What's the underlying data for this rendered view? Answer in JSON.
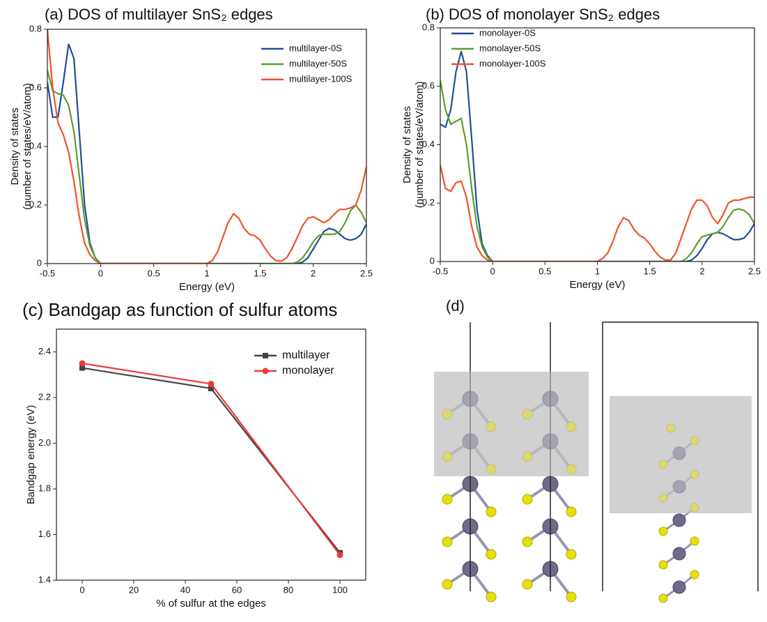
{
  "chart_data": [
    {
      "type": "line",
      "title": "(a) DOS of multilayer SnS₂ edges",
      "xlabel": "Energy (eV)",
      "ylabel": [
        "Density of states",
        "(number of states/eV/atom)"
      ],
      "xlim": [
        -0.5,
        2.5
      ],
      "xticks": [
        -0.5,
        0,
        0.5,
        1,
        1.5,
        2,
        2.5
      ],
      "ylim": [
        0,
        0.8
      ],
      "yticks": [
        0,
        0.2,
        0.4,
        0.6,
        0.8
      ],
      "grid": false,
      "legend": "upper right",
      "x": [
        -0.5,
        -0.45,
        -0.4,
        -0.35,
        -0.3,
        -0.25,
        -0.2,
        -0.15,
        -0.1,
        -0.05,
        0,
        0.1,
        0.5,
        1.0,
        1.05,
        1.1,
        1.15,
        1.2,
        1.25,
        1.3,
        1.35,
        1.4,
        1.45,
        1.5,
        1.55,
        1.6,
        1.65,
        1.7,
        1.75,
        1.8,
        1.85,
        1.9,
        1.95,
        2.0,
        2.05,
        2.1,
        2.15,
        2.2,
        2.25,
        2.3,
        2.35,
        2.4,
        2.45,
        2.5
      ],
      "series": [
        {
          "name": "multilayer-0S",
          "color": "#1f4e96",
          "values": [
            0.62,
            0.5,
            0.5,
            0.62,
            0.75,
            0.7,
            0.45,
            0.2,
            0.07,
            0.02,
            0,
            0,
            0,
            0,
            0,
            0,
            0,
            0,
            0,
            0,
            0,
            0,
            0,
            0,
            0,
            0,
            0,
            0,
            0,
            0,
            0,
            0.005,
            0.02,
            0.05,
            0.08,
            0.11,
            0.12,
            0.115,
            0.1,
            0.085,
            0.08,
            0.085,
            0.1,
            0.135
          ]
        },
        {
          "name": "multilayer-50S",
          "color": "#5a9e2f",
          "values": [
            0.66,
            0.59,
            0.58,
            0.575,
            0.54,
            0.45,
            0.3,
            0.15,
            0.06,
            0.02,
            0,
            0,
            0,
            0,
            0,
            0,
            0,
            0,
            0,
            0,
            0,
            0,
            0,
            0,
            0,
            0,
            0,
            0,
            0,
            0,
            0.005,
            0.02,
            0.045,
            0.075,
            0.095,
            0.1,
            0.1,
            0.1,
            0.11,
            0.14,
            0.18,
            0.2,
            0.175,
            0.14
          ]
        },
        {
          "name": "multilayer-100S",
          "color": "#f0522a",
          "values": [
            0.8,
            0.6,
            0.48,
            0.44,
            0.38,
            0.28,
            0.16,
            0.07,
            0.03,
            0.01,
            0,
            0,
            0,
            0,
            0.01,
            0.04,
            0.09,
            0.14,
            0.17,
            0.155,
            0.12,
            0.1,
            0.095,
            0.08,
            0.05,
            0.025,
            0.01,
            0.008,
            0.02,
            0.05,
            0.09,
            0.13,
            0.155,
            0.16,
            0.15,
            0.14,
            0.15,
            0.17,
            0.185,
            0.185,
            0.19,
            0.2,
            0.25,
            0.33
          ]
        }
      ]
    },
    {
      "type": "line",
      "title": "(b) DOS of monolayer SnS₂ edges",
      "xlabel": "Energy (eV)",
      "ylabel": [
        "Density of states",
        "(number of states/eV/atom)"
      ],
      "xlim": [
        -0.5,
        2.5
      ],
      "xticks": [
        -0.5,
        0,
        0.5,
        1,
        1.5,
        2,
        2.5
      ],
      "ylim": [
        0,
        0.8
      ],
      "yticks": [
        0,
        0.2,
        0.4,
        0.6,
        0.8
      ],
      "grid": false,
      "legend": "upper left",
      "x": [
        -0.5,
        -0.45,
        -0.4,
        -0.35,
        -0.3,
        -0.25,
        -0.2,
        -0.15,
        -0.1,
        -0.05,
        0,
        0.1,
        0.5,
        1.0,
        1.05,
        1.1,
        1.15,
        1.2,
        1.25,
        1.3,
        1.35,
        1.4,
        1.45,
        1.5,
        1.55,
        1.6,
        1.65,
        1.7,
        1.75,
        1.8,
        1.85,
        1.9,
        1.95,
        2.0,
        2.05,
        2.1,
        2.15,
        2.2,
        2.25,
        2.3,
        2.35,
        2.4,
        2.45,
        2.5
      ],
      "series": [
        {
          "name": "monolayer-0S",
          "color": "#1f4e96",
          "values": [
            0.47,
            0.46,
            0.52,
            0.65,
            0.72,
            0.65,
            0.42,
            0.18,
            0.06,
            0.02,
            0,
            0,
            0,
            0,
            0,
            0,
            0,
            0,
            0,
            0,
            0,
            0,
            0,
            0,
            0,
            0,
            0,
            0,
            0,
            0,
            0,
            0.005,
            0.02,
            0.045,
            0.075,
            0.095,
            0.1,
            0.095,
            0.085,
            0.075,
            0.075,
            0.08,
            0.1,
            0.13
          ]
        },
        {
          "name": "monolayer-50S",
          "color": "#5a9e2f",
          "values": [
            0.62,
            0.52,
            0.47,
            0.48,
            0.49,
            0.4,
            0.25,
            0.12,
            0.05,
            0.015,
            0,
            0,
            0,
            0,
            0,
            0,
            0,
            0,
            0,
            0,
            0,
            0,
            0,
            0,
            0,
            0,
            0,
            0,
            0,
            0,
            0.01,
            0.03,
            0.06,
            0.085,
            0.09,
            0.095,
            0.1,
            0.12,
            0.15,
            0.175,
            0.18,
            0.175,
            0.16,
            0.13
          ]
        },
        {
          "name": "monolayer-100S",
          "color": "#f0522a",
          "values": [
            0.33,
            0.25,
            0.24,
            0.27,
            0.275,
            0.22,
            0.12,
            0.05,
            0.02,
            0.005,
            0,
            0,
            0,
            0,
            0.01,
            0.03,
            0.07,
            0.12,
            0.15,
            0.14,
            0.11,
            0.09,
            0.08,
            0.06,
            0.035,
            0.015,
            0.005,
            0.005,
            0.03,
            0.08,
            0.13,
            0.18,
            0.21,
            0.21,
            0.19,
            0.15,
            0.13,
            0.16,
            0.2,
            0.21,
            0.21,
            0.215,
            0.22,
            0.22
          ]
        }
      ]
    },
    {
      "type": "line",
      "title": "(c) Bandgap as function of sulfur atoms",
      "xlabel": "% of sulfur at the edges",
      "ylabel": [
        "Bandgap energy (eV)"
      ],
      "xlim": [
        -10,
        110
      ],
      "xticks": [
        0,
        20,
        40,
        60,
        80,
        100
      ],
      "ylim": [
        1.4,
        2.5
      ],
      "yticks": [
        1.4,
        1.6,
        1.8,
        {
          "value": 2,
          "label": "2.0"
        },
        2.2,
        2.4
      ],
      "grid": false,
      "legend": "upper right",
      "x": [
        0,
        50,
        100
      ],
      "series": [
        {
          "name": "multilayer",
          "color": "#444444",
          "marker": "square",
          "values": [
            2.33,
            2.24,
            1.52
          ]
        },
        {
          "name": "monolayer",
          "color": "#ee3b3b",
          "marker": "circle",
          "values": [
            2.35,
            2.26,
            1.51
          ]
        }
      ]
    }
  ],
  "panel_d": {
    "label": "(d)"
  }
}
